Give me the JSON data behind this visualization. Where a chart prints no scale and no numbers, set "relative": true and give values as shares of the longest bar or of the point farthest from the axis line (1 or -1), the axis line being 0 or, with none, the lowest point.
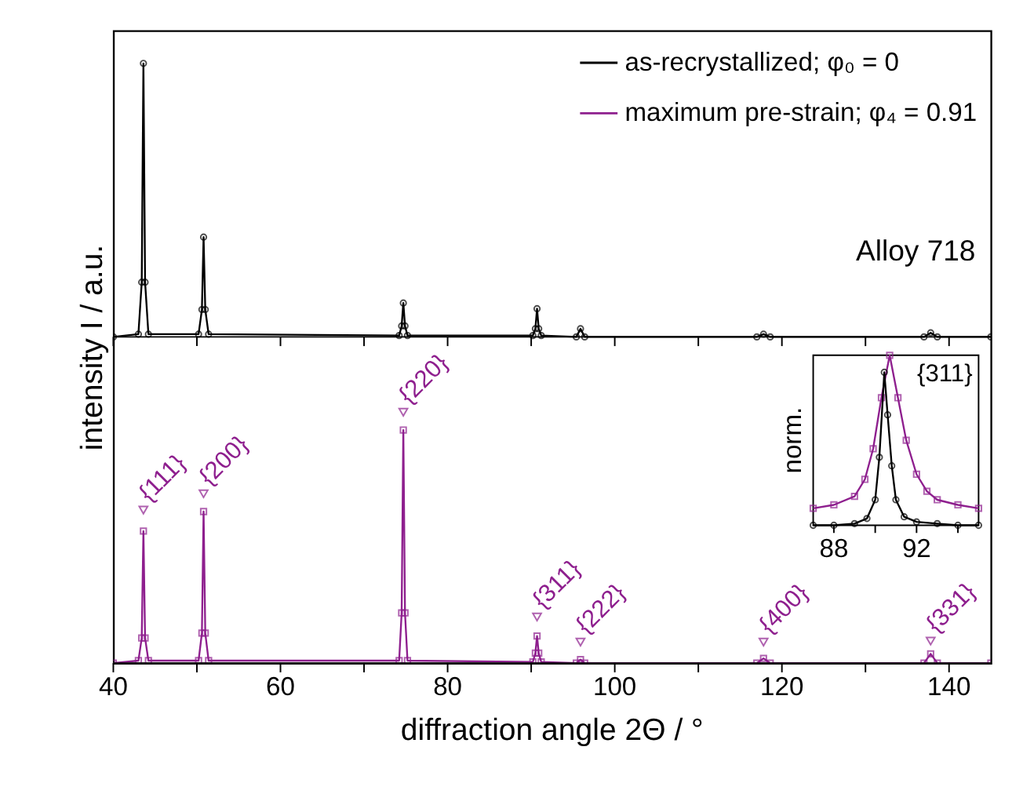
{
  "chart_data": [
    {
      "type": "line",
      "relative": true,
      "ylabel": "intensity I / a.u.",
      "xlim": [
        40,
        145
      ],
      "xticks": [
        40,
        {
          "value": 50,
          "label": null
        },
        60,
        {
          "value": 70,
          "label": null
        },
        80,
        {
          "value": 90,
          "label": null
        },
        100,
        {
          "value": 110,
          "label": null
        },
        120,
        {
          "value": 130,
          "label": null
        },
        140
      ],
      "tick_labels": false,
      "legend": "top right",
      "marker": "circle",
      "grid": false,
      "annotations": [
        "Alloy 718"
      ],
      "series": [
        {
          "name": "as-recrystallized; φ₀ = 0",
          "color": "#000000",
          "x": [
            40,
            43.0,
            43.4,
            43.6,
            43.8,
            44.2,
            50.2,
            50.6,
            50.8,
            51.0,
            51.4,
            74.2,
            74.5,
            74.7,
            74.9,
            75.2,
            90.2,
            90.5,
            90.7,
            90.9,
            91.2,
            95.4,
            95.9,
            96.4,
            117.0,
            117.8,
            118.6,
            137.0,
            137.8,
            138.6,
            145
          ],
          "values": [
            0,
            0.01,
            0.2,
            1,
            0.2,
            0.01,
            0.01,
            0.1,
            0.365,
            0.1,
            0.01,
            0.005,
            0.04,
            0.124,
            0.04,
            0.005,
            0.005,
            0.03,
            0.103,
            0.03,
            0.005,
            0,
            0.03,
            0,
            0,
            0.01,
            0,
            0,
            0.015,
            0,
            0
          ]
        }
      ]
    },
    {
      "type": "line",
      "relative": true,
      "xlabel": "diffraction angle 2Θ / °",
      "xlim": [
        40,
        145
      ],
      "xticks": [
        40,
        {
          "value": 50,
          "label": null
        },
        60,
        {
          "value": 70,
          "label": null
        },
        80,
        {
          "value": 90,
          "label": null
        },
        100,
        {
          "value": 110,
          "label": null
        },
        120,
        {
          "value": 130,
          "label": null
        },
        140
      ],
      "tick_labels": "x",
      "marker": "square",
      "grid": false,
      "annotations": [
        {
          "text": "{111}",
          "x": 43.6,
          "y": 0.61
        },
        {
          "text": "{200}",
          "x": 50.8,
          "y": 0.675
        },
        {
          "text": "{220}",
          "x": 74.7,
          "y": 1.0
        },
        {
          "text": "{311}",
          "x": 90.7,
          "y": 0.184
        },
        {
          "text": "{222}",
          "x": 95.9,
          "y": 0.084
        },
        {
          "text": "{400}",
          "x": 117.8,
          "y": 0.084
        },
        {
          "text": "{331}",
          "x": 137.8,
          "y": 0.088
        }
      ],
      "series": [
        {
          "name": "maximum pre-strain; φ₄ = 0.91",
          "color": "#8e1f8e",
          "x": [
            40,
            43.0,
            43.4,
            43.6,
            43.8,
            44.2,
            50.2,
            50.6,
            50.8,
            51.0,
            51.4,
            74.2,
            74.5,
            74.7,
            74.9,
            75.2,
            90.2,
            90.5,
            90.7,
            90.9,
            91.2,
            95.4,
            95.9,
            96.4,
            117.0,
            117.8,
            118.6,
            137.0,
            137.8,
            138.6,
            145
          ],
          "values": [
            0,
            0.01,
            0.1,
            0.526,
            0.1,
            0.01,
            0.01,
            0.12,
            0.604,
            0.12,
            0.01,
            0.01,
            0.2,
            0.929,
            0.2,
            0.01,
            0.005,
            0.04,
            0.108,
            0.04,
            0.005,
            0,
            0.014,
            0,
            0,
            0.019,
            0,
            0,
            0.037,
            0,
            0
          ]
        },
        {
          "type": "scatter",
          "marker": "triangle",
          "color": "#8e1f8e",
          "x": [
            43.6,
            50.8,
            74.7,
            90.7,
            95.9,
            117.8,
            137.8
          ],
          "values": [
            0.61,
            0.675,
            1.0,
            0.184,
            0.084,
            0.084,
            0.088
          ]
        }
      ]
    },
    {
      "type": "line",
      "relative": true,
      "ylabel": "norm.",
      "xlim": [
        87,
        95
      ],
      "xticks": [
        88,
        {
          "value": 90,
          "label": null
        },
        92,
        {
          "value": 94,
          "label": null
        }
      ],
      "tick_labels": "x",
      "grid": false,
      "annotations": [
        "{311}"
      ],
      "series": [
        {
          "color": "#8e1f8e",
          "marker": "square",
          "x": [
            87,
            88,
            89,
            89.5,
            89.9,
            90.3,
            90.7,
            91.1,
            91.5,
            92,
            92.5,
            93,
            94,
            95
          ],
          "values": [
            0.1,
            0.12,
            0.17,
            0.27,
            0.45,
            0.75,
            1.0,
            0.75,
            0.5,
            0.3,
            0.2,
            0.15,
            0.12,
            0.1
          ]
        },
        {
          "color": "#000000",
          "marker": "circle",
          "x": [
            87,
            88,
            89,
            89.6,
            90.0,
            90.2,
            90.44,
            90.6,
            90.8,
            91.0,
            91.4,
            92,
            93,
            94,
            95
          ],
          "values": [
            0,
            0,
            0.01,
            0.04,
            0.15,
            0.4,
            0.9,
            0.65,
            0.35,
            0.15,
            0.05,
            0.02,
            0.01,
            0,
            0
          ]
        }
      ]
    }
  ]
}
